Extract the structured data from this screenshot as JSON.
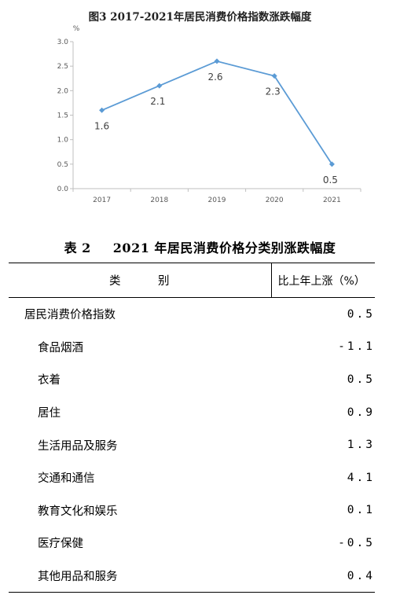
{
  "chart_data": {
    "type": "line",
    "title": "图3 2017-2021年居民消费价格指数涨跌幅度",
    "y_unit": "%",
    "categories": [
      "2017",
      "2018",
      "2019",
      "2020",
      "2021"
    ],
    "series": [
      {
        "values": [
          1.6,
          2.1,
          2.6,
          2.3,
          0.5
        ]
      }
    ],
    "data_labels": [
      "1.6",
      "2.1",
      "2.6",
      "2.3",
      "0.5"
    ],
    "yticks": [
      "0.0",
      "0.5",
      "1.0",
      "1.5",
      "2.0",
      "2.5",
      "3.0"
    ],
    "ylim": [
      0,
      3.0
    ],
    "grid": false,
    "colors": {
      "line": "#5b9bd5",
      "axis": "#bfbfbf"
    }
  },
  "table": {
    "title_number": "表 2",
    "title_text": "2021 年居民消费价格分类别涨跌幅度",
    "headers": {
      "category": "类　　　别",
      "value": "比上年上涨（%）"
    },
    "rows": [
      {
        "label": "居民消费价格指数",
        "value": "0.5",
        "level": 0
      },
      {
        "label": "食品烟酒",
        "value": "-1.1",
        "level": 1
      },
      {
        "label": "衣着",
        "value": "0.5",
        "level": 1
      },
      {
        "label": "居住",
        "value": "0.9",
        "level": 1
      },
      {
        "label": "生活用品及服务",
        "value": "1.3",
        "level": 1
      },
      {
        "label": "交通和通信",
        "value": "4.1",
        "level": 1
      },
      {
        "label": "教育文化和娱乐",
        "value": "0.1",
        "level": 1
      },
      {
        "label": "医疗保健",
        "value": "-0.5",
        "level": 1
      },
      {
        "label": "其他用品和服务",
        "value": "0.4",
        "level": 1
      }
    ]
  }
}
